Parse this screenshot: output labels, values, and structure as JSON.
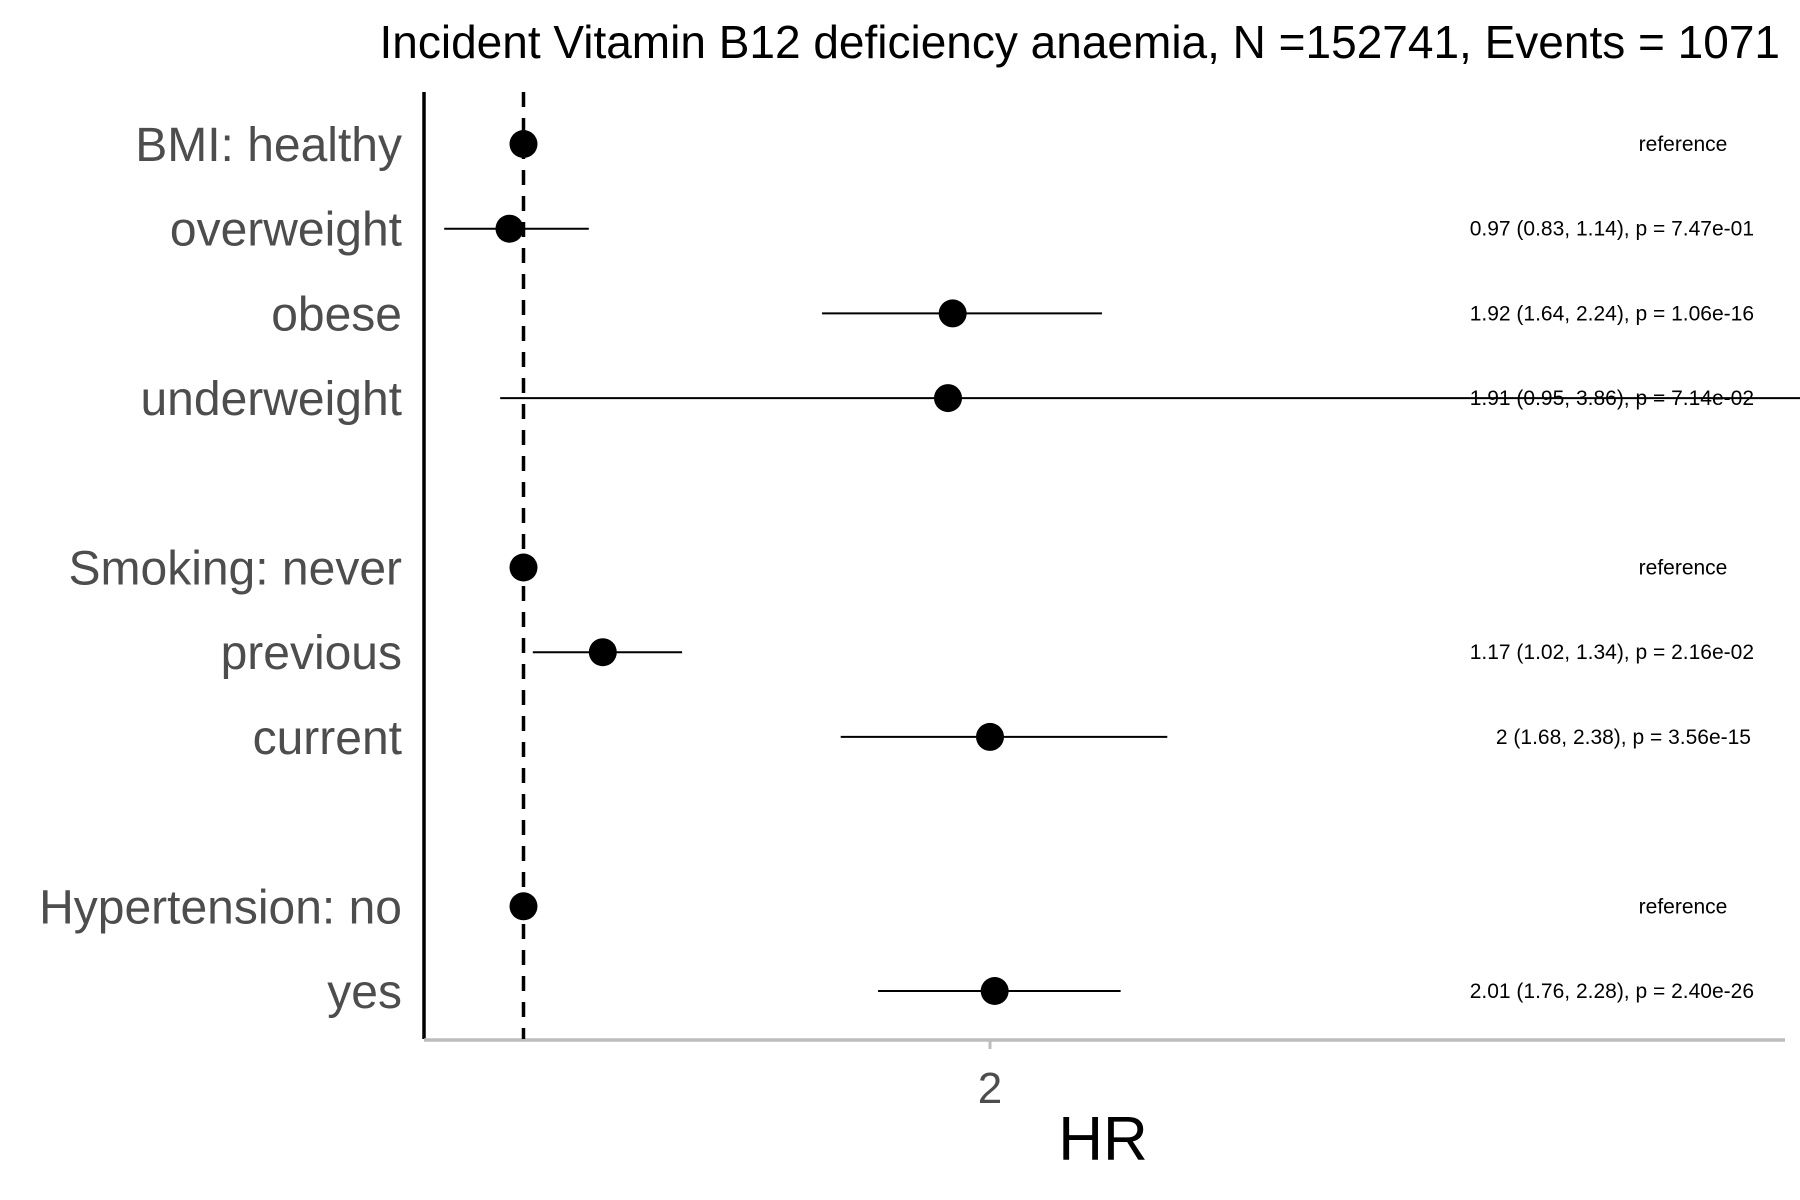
{
  "chart_data": {
    "type": "forest",
    "title": "Incident Vitamin B12 deficiency anaemia, N =152741, Events = 1071",
    "xlabel": "HR",
    "xlim": [
      0.7,
      6.1
    ],
    "xticks": [
      2,
      4,
      6
    ],
    "reference_line": 1,
    "rows": [
      {
        "label": "BMI: healthy",
        "hr": 1,
        "lo": null,
        "hi": null,
        "text": "reference"
      },
      {
        "label": "overweight",
        "hr": 0.97,
        "lo": 0.83,
        "hi": 1.14,
        "text": "0.97 (0.83, 1.14), p = 7.47e-01"
      },
      {
        "label": "obese",
        "hr": 1.92,
        "lo": 1.64,
        "hi": 2.24,
        "text": "1.92 (1.64, 2.24), p = 1.06e-16"
      },
      {
        "label": "underweight",
        "hr": 1.91,
        "lo": 0.95,
        "hi": 3.86,
        "text": "1.91 (0.95, 3.86), p = 7.14e-02"
      },
      {
        "gap": true
      },
      {
        "label": "Smoking: never",
        "hr": 1,
        "lo": null,
        "hi": null,
        "text": "reference"
      },
      {
        "label": "previous",
        "hr": 1.17,
        "lo": 1.02,
        "hi": 1.34,
        "text": "1.17 (1.02, 1.34), p = 2.16e-02"
      },
      {
        "label": "current",
        "hr": 2,
        "lo": 1.68,
        "hi": 2.38,
        "text": "2 (1.68, 2.38), p = 3.56e-15"
      },
      {
        "gap": true
      },
      {
        "label": "Hypertension: no",
        "hr": 1,
        "lo": null,
        "hi": null,
        "text": "reference"
      },
      {
        "label": "yes",
        "hr": 2.01,
        "lo": 1.76,
        "hi": 2.28,
        "text": "2.01 (1.76, 2.28), p = 2.40e-26"
      }
    ],
    "grid": false
  }
}
